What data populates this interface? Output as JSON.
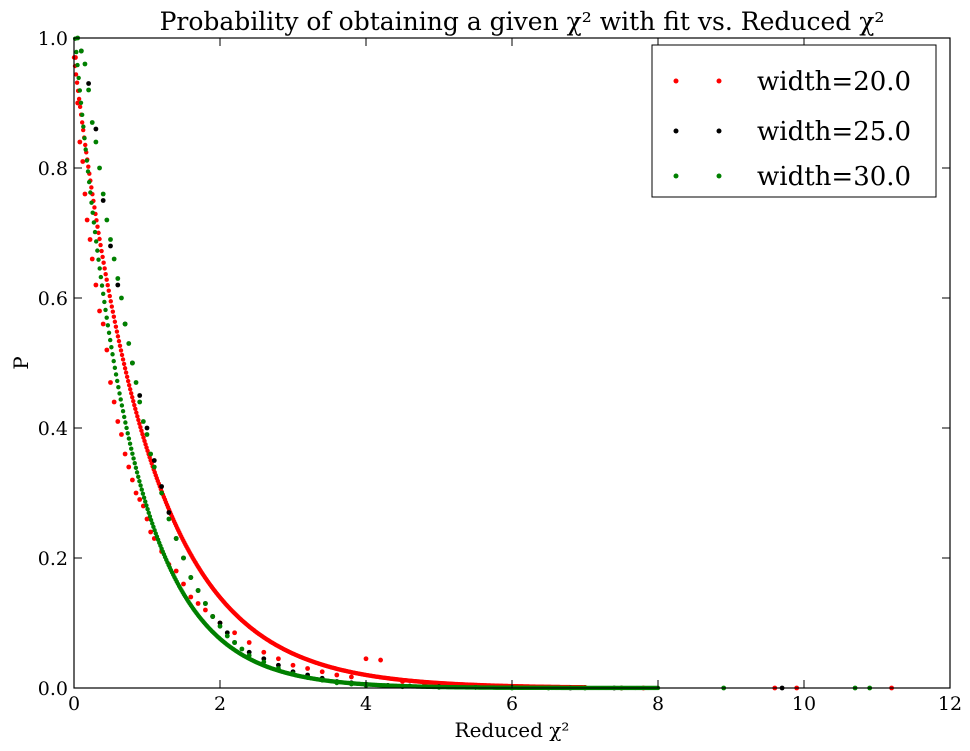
{
  "chart_data": {
    "type": "scatter",
    "title": "Probability of obtaining a given χ² with fit vs. Reduced χ²",
    "xlabel": "Reduced χ²",
    "ylabel": "P",
    "xlim": [
      0,
      12
    ],
    "ylim": [
      0,
      1.0
    ],
    "x_ticks": [
      0,
      2,
      4,
      6,
      8,
      10,
      12
    ],
    "y_ticks": [
      0.0,
      0.2,
      0.4,
      0.6,
      0.8,
      1.0
    ],
    "grid": false,
    "legend_placement": "top-right",
    "series": [
      {
        "name": "width=20.0",
        "color": "#ff0000",
        "trend": {
          "form": "exp",
          "a": 0.97,
          "b": 0.97,
          "x_range": [
            0,
            7
          ]
        },
        "x": [
          0.02,
          0.05,
          0.08,
          0.12,
          0.15,
          0.18,
          0.22,
          0.25,
          0.3,
          0.35,
          0.4,
          0.45,
          0.5,
          0.55,
          0.6,
          0.65,
          0.7,
          0.75,
          0.8,
          0.85,
          0.9,
          0.95,
          1.0,
          1.05,
          1.1,
          1.2,
          1.3,
          1.4,
          1.5,
          1.6,
          1.7,
          1.8,
          1.9,
          2.0,
          2.2,
          2.4,
          2.6,
          2.8,
          3.0,
          3.2,
          3.4,
          3.6,
          3.8,
          4.0,
          4.2,
          4.5,
          4.8,
          5.1,
          5.5,
          6.0,
          6.5,
          7.0,
          7.5,
          7.8,
          9.6,
          9.9,
          11.2
        ],
        "y": [
          0.97,
          0.9,
          0.84,
          0.81,
          0.76,
          0.72,
          0.69,
          0.66,
          0.62,
          0.58,
          0.56,
          0.52,
          0.47,
          0.44,
          0.41,
          0.39,
          0.36,
          0.34,
          0.32,
          0.3,
          0.29,
          0.28,
          0.26,
          0.24,
          0.23,
          0.21,
          0.19,
          0.18,
          0.16,
          0.14,
          0.13,
          0.12,
          0.11,
          0.1,
          0.085,
          0.07,
          0.055,
          0.045,
          0.035,
          0.03,
          0.025,
          0.02,
          0.017,
          0.045,
          0.043,
          0.01,
          0.007,
          0.004,
          0.003,
          0.002,
          0.001,
          0.001,
          0.0,
          0.0,
          0.0,
          0.0,
          0.0
        ]
      },
      {
        "name": "width=25.0",
        "color": "#000000",
        "x": [
          0.1,
          0.2,
          0.3,
          0.4,
          0.5,
          0.6,
          0.7,
          0.8,
          0.9,
          1.0,
          1.1,
          1.2,
          1.3,
          1.4,
          1.5,
          1.6,
          1.7,
          1.8,
          1.9,
          2.0,
          2.1,
          2.2,
          2.4,
          2.6,
          2.8,
          3.0,
          3.2,
          3.4,
          3.6,
          3.8,
          4.0,
          4.3,
          4.6,
          5.0,
          5.5,
          6.0,
          6.8,
          7.4,
          9.7
        ],
        "y": [
          0.98,
          0.93,
          0.86,
          0.75,
          0.68,
          0.62,
          0.56,
          0.5,
          0.45,
          0.4,
          0.35,
          0.31,
          0.27,
          0.23,
          0.2,
          0.17,
          0.15,
          0.13,
          0.11,
          0.1,
          0.085,
          0.07,
          0.055,
          0.045,
          0.035,
          0.025,
          0.02,
          0.015,
          0.01,
          0.008,
          0.006,
          0.004,
          0.003,
          0.002,
          0.001,
          0.001,
          0.0,
          0.0,
          0.0
        ]
      },
      {
        "name": "width=30.0",
        "color": "#008000",
        "trend": {
          "form": "exp",
          "a": 1.02,
          "b": 1.3,
          "x_range": [
            0,
            8
          ]
        },
        "x": [
          0.05,
          0.1,
          0.15,
          0.2,
          0.25,
          0.3,
          0.35,
          0.4,
          0.45,
          0.5,
          0.55,
          0.6,
          0.65,
          0.7,
          0.75,
          0.8,
          0.85,
          0.9,
          0.95,
          1.0,
          1.05,
          1.1,
          1.2,
          1.3,
          1.4,
          1.5,
          1.6,
          1.7,
          1.8,
          1.9,
          2.0,
          2.1,
          2.2,
          2.3,
          2.4,
          2.6,
          2.8,
          3.0,
          3.2,
          3.4,
          3.6,
          3.8,
          4.0,
          4.5,
          5.0,
          5.5,
          6.0,
          6.5,
          7.0,
          7.5,
          8.9,
          10.7,
          10.9
        ],
        "y": [
          1.0,
          0.98,
          0.96,
          0.92,
          0.87,
          0.84,
          0.8,
          0.76,
          0.72,
          0.69,
          0.66,
          0.63,
          0.6,
          0.56,
          0.53,
          0.5,
          0.47,
          0.44,
          0.41,
          0.39,
          0.36,
          0.34,
          0.3,
          0.26,
          0.23,
          0.2,
          0.17,
          0.15,
          0.13,
          0.11,
          0.095,
          0.08,
          0.07,
          0.06,
          0.05,
          0.04,
          0.03,
          0.022,
          0.016,
          0.012,
          0.008,
          0.006,
          0.004,
          0.002,
          0.001,
          0.001,
          0.0,
          0.0,
          0.0,
          0.0,
          0.0,
          0.0,
          0.0
        ]
      }
    ]
  }
}
